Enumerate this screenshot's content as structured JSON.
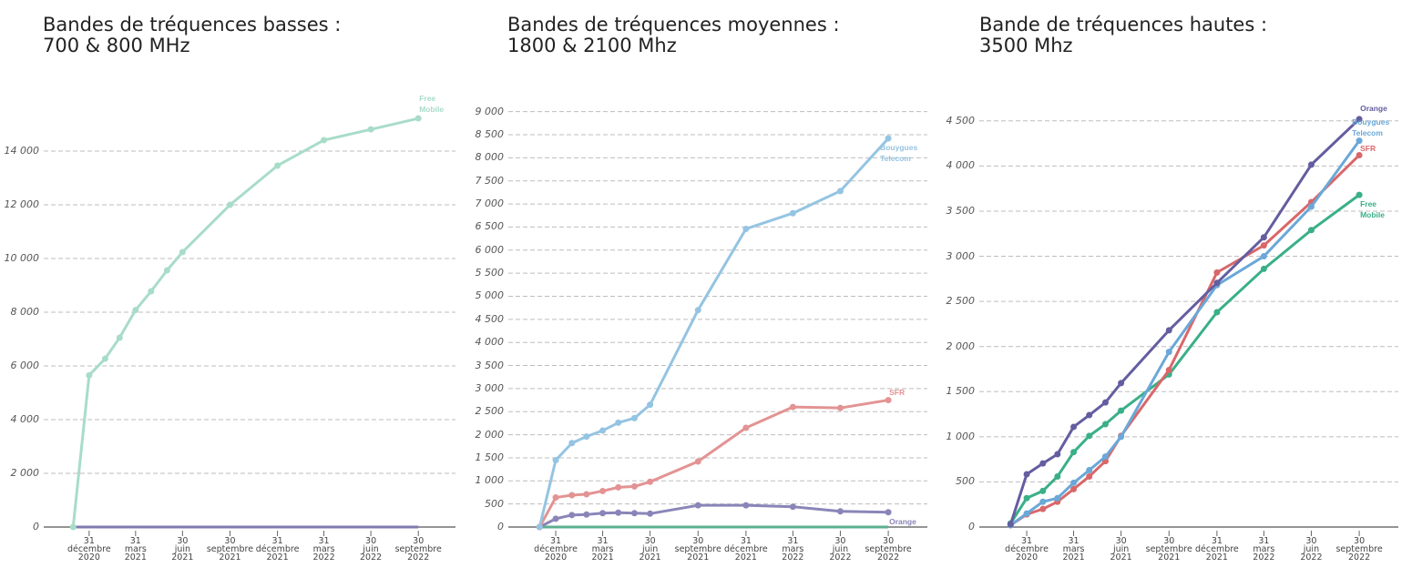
{
  "chart_data": [
    {
      "type": "line",
      "title": "Bandes de tréquences basses :",
      "subtitle": "700 & 800 MHz",
      "x": [
        "2020-11-30",
        "2020-12-31",
        "2021-01-31",
        "2021-02-28",
        "2021-03-31",
        "2021-04-30",
        "2021-05-31",
        "2021-06-30",
        "2021-09-30",
        "2021-12-31",
        "2022-03-31",
        "2022-06-30",
        "2022-09-30"
      ],
      "xlim": [
        "2020-10-04",
        "2022-12-11"
      ],
      "xticks": [
        {
          "value": "2020-12-31",
          "label": "31 décembre 2020"
        },
        {
          "value": "2021-03-31",
          "label": "31 mars 2021"
        },
        {
          "value": "2021-06-30",
          "label": "30 juin 2021"
        },
        {
          "value": "2021-09-30",
          "label": "30 septembre 2021"
        },
        {
          "value": "2021-12-31",
          "label": "31 décembre 2021"
        },
        {
          "value": "2022-03-31",
          "label": "31 mars 2022"
        },
        {
          "value": "2022-06-30",
          "label": "30 juin 2022"
        },
        {
          "value": "2022-09-30",
          "label": "30 septembre 2022"
        }
      ],
      "ylim": [
        0,
        15900
      ],
      "yticks": [
        0,
        {
          "value": 2000,
          "label": "2 000"
        },
        {
          "value": 4000,
          "label": "4 000"
        },
        {
          "value": 6000,
          "label": "6 000"
        },
        {
          "value": 8000,
          "label": "8 000"
        },
        {
          "value": 10000,
          "label": "10 000"
        },
        {
          "value": 12000,
          "label": "12 000"
        },
        {
          "value": 14000,
          "label": "14 000"
        }
      ],
      "grid": true,
      "series": [
        {
          "color": "#7f7bb0",
          "markers": false,
          "values": [
            0,
            0,
            0,
            0,
            0,
            0,
            0,
            0,
            0,
            0,
            0,
            0,
            0
          ]
        },
        {
          "name": "Free Mobile",
          "color": "#a8dcc9",
          "values": [
            0,
            5650,
            6270,
            7050,
            8080,
            8780,
            9560,
            10240,
            12000,
            13460,
            14410,
            14810,
            15220
          ]
        }
      ]
    },
    {
      "type": "line",
      "title": "Bandes de tréquences moyennes :",
      "subtitle": "1800 & 2100 Mhz",
      "x": [
        "2020-11-30",
        "2020-12-31",
        "2021-01-31",
        "2021-02-28",
        "2021-03-31",
        "2021-04-30",
        "2021-05-31",
        "2021-06-30",
        "2021-09-30",
        "2021-12-31",
        "2022-03-31",
        "2022-06-30",
        "2022-09-30"
      ],
      "xlim": [
        "2020-10-01",
        "2022-12-14"
      ],
      "xticks": [
        {
          "value": "2020-12-31",
          "label": "31 décembre 2020"
        },
        {
          "value": "2021-03-31",
          "label": "31 mars 2021"
        },
        {
          "value": "2021-06-30",
          "label": "30 juin 2021"
        },
        {
          "value": "2021-09-30",
          "label": "30 septembre 2021"
        },
        {
          "value": "2021-12-31",
          "label": "31 décembre 2021"
        },
        {
          "value": "2022-03-31",
          "label": "31 mars 2022"
        },
        {
          "value": "2022-06-30",
          "label": "30 juin 2022"
        },
        {
          "value": "2022-09-30",
          "label": "30 septembre 2022"
        }
      ],
      "ylim": [
        0,
        9250
      ],
      "yticks": [
        0,
        500,
        {
          "value": 1000,
          "label": "1 000"
        },
        {
          "value": 1500,
          "label": "1 500"
        },
        {
          "value": 2000,
          "label": "2 000"
        },
        {
          "value": 2500,
          "label": "2 500"
        },
        {
          "value": 3000,
          "label": "3 000"
        },
        {
          "value": 3500,
          "label": "3 500"
        },
        {
          "value": 4000,
          "label": "4 000"
        },
        {
          "value": 4500,
          "label": "4 500"
        },
        {
          "value": 5000,
          "label": "5 000"
        },
        {
          "value": 5500,
          "label": "5 500"
        },
        {
          "value": 6000,
          "label": "6 000"
        },
        {
          "value": 6500,
          "label": "6 500"
        },
        {
          "value": 7000,
          "label": "7 000"
        },
        {
          "value": 7500,
          "label": "7 500"
        },
        {
          "value": 8000,
          "label": "8 000"
        },
        {
          "value": 8500,
          "label": "8 500"
        },
        {
          "value": 9000,
          "label": "9 000"
        }
      ],
      "grid": true,
      "series": [
        {
          "color": "#5bb08f",
          "markers": false,
          "values": [
            0,
            0,
            0,
            0,
            0,
            0,
            0,
            0,
            0,
            0,
            0,
            0,
            0
          ]
        },
        {
          "name": "Orange",
          "color": "#8a85b8",
          "values": [
            0,
            180,
            260,
            270,
            300,
            310,
            300,
            290,
            470,
            470,
            440,
            340,
            320
          ]
        },
        {
          "name": "SFR",
          "color": "#e39393",
          "values": [
            0,
            640,
            690,
            710,
            780,
            860,
            880,
            980,
            1420,
            2150,
            2600,
            2580,
            2750
          ]
        },
        {
          "name": "Bouygues Telecom",
          "color": "#94c4e2",
          "values": [
            0,
            1450,
            1820,
            1960,
            2090,
            2260,
            2360,
            2650,
            4700,
            6460,
            6800,
            7280,
            8420
          ]
        }
      ]
    },
    {
      "type": "line",
      "title": "Bande de tréquences hautes :",
      "subtitle": "3500 Mhz",
      "x": [
        "2020-11-30",
        "2020-12-31",
        "2021-01-31",
        "2021-02-28",
        "2021-03-31",
        "2021-04-30",
        "2021-05-31",
        "2021-06-30",
        "2021-09-30",
        "2021-12-31",
        "2022-03-31",
        "2022-06-30",
        "2022-09-30"
      ],
      "xlim": [
        "2020-10-01",
        "2022-12-14"
      ],
      "xticks": [
        {
          "value": "2020-12-31",
          "label": "31 décembre 2020"
        },
        {
          "value": "2021-03-31",
          "label": "31 mars 2021"
        },
        {
          "value": "2021-06-30",
          "label": "30 juin 2021"
        },
        {
          "value": "2021-09-30",
          "label": "30 septembre 2021"
        },
        {
          "value": "2021-12-31",
          "label": "31 décembre 2021"
        },
        {
          "value": "2022-03-31",
          "label": "31 mars 2022"
        },
        {
          "value": "2022-06-30",
          "label": "30 juin 2022"
        },
        {
          "value": "2022-09-30",
          "label": "30 septembre 2022"
        }
      ],
      "ylim": [
        0,
        4730
      ],
      "yticks": [
        0,
        500,
        {
          "value": 1000,
          "label": "1 000"
        },
        {
          "value": 1500,
          "label": "1 500"
        },
        {
          "value": 2000,
          "label": "2 000"
        },
        {
          "value": 2500,
          "label": "2 500"
        },
        {
          "value": 3000,
          "label": "3 000"
        },
        {
          "value": 3500,
          "label": "3 500"
        },
        {
          "value": 4000,
          "label": "4 000"
        },
        {
          "value": 4500,
          "label": "4 500"
        }
      ],
      "grid": true,
      "series": [
        {
          "name": "Free Mobile",
          "color": "#3aaf88",
          "values": [
            40,
            320,
            400,
            560,
            830,
            1010,
            1140,
            1290,
            1690,
            2380,
            2860,
            3290,
            3680
          ]
        },
        {
          "name": "SFR",
          "color": "#d9676a",
          "values": [
            20,
            140,
            200,
            280,
            420,
            560,
            730,
            1010,
            1740,
            2820,
            3120,
            3600,
            4120
          ]
        },
        {
          "name": "Bouygues Telecom",
          "color": "#6aa8d8",
          "values": [
            20,
            150,
            280,
            320,
            490,
            630,
            780,
            1000,
            1940,
            2680,
            3000,
            3550,
            4280
          ]
        },
        {
          "name": "Orange",
          "color": "#645da0",
          "values": [
            30,
            585,
            705,
            807,
            1110,
            1240,
            1380,
            1595,
            2180,
            2705,
            3210,
            4015,
            4520
          ]
        }
      ]
    }
  ]
}
